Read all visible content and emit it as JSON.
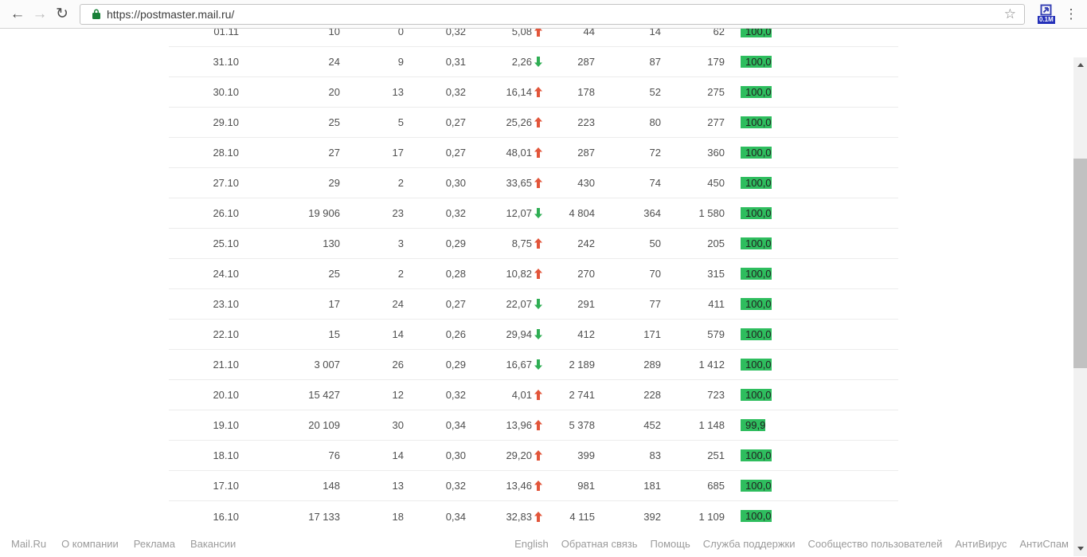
{
  "browser": {
    "url": "https://postmaster.mail.ru/",
    "back_icon": "←",
    "forward_icon": "→",
    "reload_icon": "↻",
    "bookmark_star_icon": "☆",
    "menu_icon": "⋮",
    "extension_badge": "0.1M",
    "colors": {
      "lock_green": "#188038",
      "extension_blue": "#3742b4",
      "badge_blue": "#2430b9"
    }
  },
  "table": {
    "bar_color": "#2ebd5e",
    "trend_up_color": "#e2553a",
    "trend_down_color": "#2fae54",
    "rows": [
      {
        "date": "01.11",
        "v2": "10",
        "v3": "0",
        "v4": "0,32",
        "pct": "5,08",
        "trend": "up",
        "v6": "44",
        "v7": "14",
        "v8": "62",
        "bar": "100,0"
      },
      {
        "date": "31.10",
        "v2": "24",
        "v3": "9",
        "v4": "0,31",
        "pct": "2,26",
        "trend": "down",
        "v6": "287",
        "v7": "87",
        "v8": "179",
        "bar": "100,0"
      },
      {
        "date": "30.10",
        "v2": "20",
        "v3": "13",
        "v4": "0,32",
        "pct": "16,14",
        "trend": "up",
        "v6": "178",
        "v7": "52",
        "v8": "275",
        "bar": "100,0"
      },
      {
        "date": "29.10",
        "v2": "25",
        "v3": "5",
        "v4": "0,27",
        "pct": "25,26",
        "trend": "up",
        "v6": "223",
        "v7": "80",
        "v8": "277",
        "bar": "100,0"
      },
      {
        "date": "28.10",
        "v2": "27",
        "v3": "17",
        "v4": "0,27",
        "pct": "48,01",
        "trend": "up",
        "v6": "287",
        "v7": "72",
        "v8": "360",
        "bar": "100,0"
      },
      {
        "date": "27.10",
        "v2": "29",
        "v3": "2",
        "v4": "0,30",
        "pct": "33,65",
        "trend": "up",
        "v6": "430",
        "v7": "74",
        "v8": "450",
        "bar": "100,0"
      },
      {
        "date": "26.10",
        "v2": "19 906",
        "v3": "23",
        "v4": "0,32",
        "pct": "12,07",
        "trend": "down",
        "v6": "4 804",
        "v7": "364",
        "v8": "1 580",
        "bar": "100,0"
      },
      {
        "date": "25.10",
        "v2": "130",
        "v3": "3",
        "v4": "0,29",
        "pct": "8,75",
        "trend": "up",
        "v6": "242",
        "v7": "50",
        "v8": "205",
        "bar": "100,0"
      },
      {
        "date": "24.10",
        "v2": "25",
        "v3": "2",
        "v4": "0,28",
        "pct": "10,82",
        "trend": "up",
        "v6": "270",
        "v7": "70",
        "v8": "315",
        "bar": "100,0"
      },
      {
        "date": "23.10",
        "v2": "17",
        "v3": "24",
        "v4": "0,27",
        "pct": "22,07",
        "trend": "down",
        "v6": "291",
        "v7": "77",
        "v8": "411",
        "bar": "100,0"
      },
      {
        "date": "22.10",
        "v2": "15",
        "v3": "14",
        "v4": "0,26",
        "pct": "29,94",
        "trend": "down",
        "v6": "412",
        "v7": "171",
        "v8": "579",
        "bar": "100,0"
      },
      {
        "date": "21.10",
        "v2": "3 007",
        "v3": "26",
        "v4": "0,29",
        "pct": "16,67",
        "trend": "down",
        "v6": "2 189",
        "v7": "289",
        "v8": "1 412",
        "bar": "100,0"
      },
      {
        "date": "20.10",
        "v2": "15 427",
        "v3": "12",
        "v4": "0,32",
        "pct": "4,01",
        "trend": "up",
        "v6": "2 741",
        "v7": "228",
        "v8": "723",
        "bar": "100,0"
      },
      {
        "date": "19.10",
        "v2": "20 109",
        "v3": "30",
        "v4": "0,34",
        "pct": "13,96",
        "trend": "up",
        "v6": "5 378",
        "v7": "452",
        "v8": "1 148",
        "bar": "99,9"
      },
      {
        "date": "18.10",
        "v2": "76",
        "v3": "14",
        "v4": "0,30",
        "pct": "29,20",
        "trend": "up",
        "v6": "399",
        "v7": "83",
        "v8": "251",
        "bar": "100,0"
      },
      {
        "date": "17.10",
        "v2": "148",
        "v3": "13",
        "v4": "0,32",
        "pct": "13,46",
        "trend": "up",
        "v6": "981",
        "v7": "181",
        "v8": "685",
        "bar": "100,0"
      },
      {
        "date": "16.10",
        "v2": "17 133",
        "v3": "18",
        "v4": "0,34",
        "pct": "32,83",
        "trend": "up",
        "v6": "4 115",
        "v7": "392",
        "v8": "1 109",
        "bar": "100,0"
      }
    ]
  },
  "footer": {
    "left_links": [
      "Mail.Ru",
      "О компании",
      "Реклама",
      "Вакансии"
    ],
    "right_links": [
      "English",
      "Обратная связь",
      "Помощь",
      "Служба поддержки",
      "Сообщество пользователей",
      "АнтиВирус",
      "АнтиСпам"
    ]
  }
}
